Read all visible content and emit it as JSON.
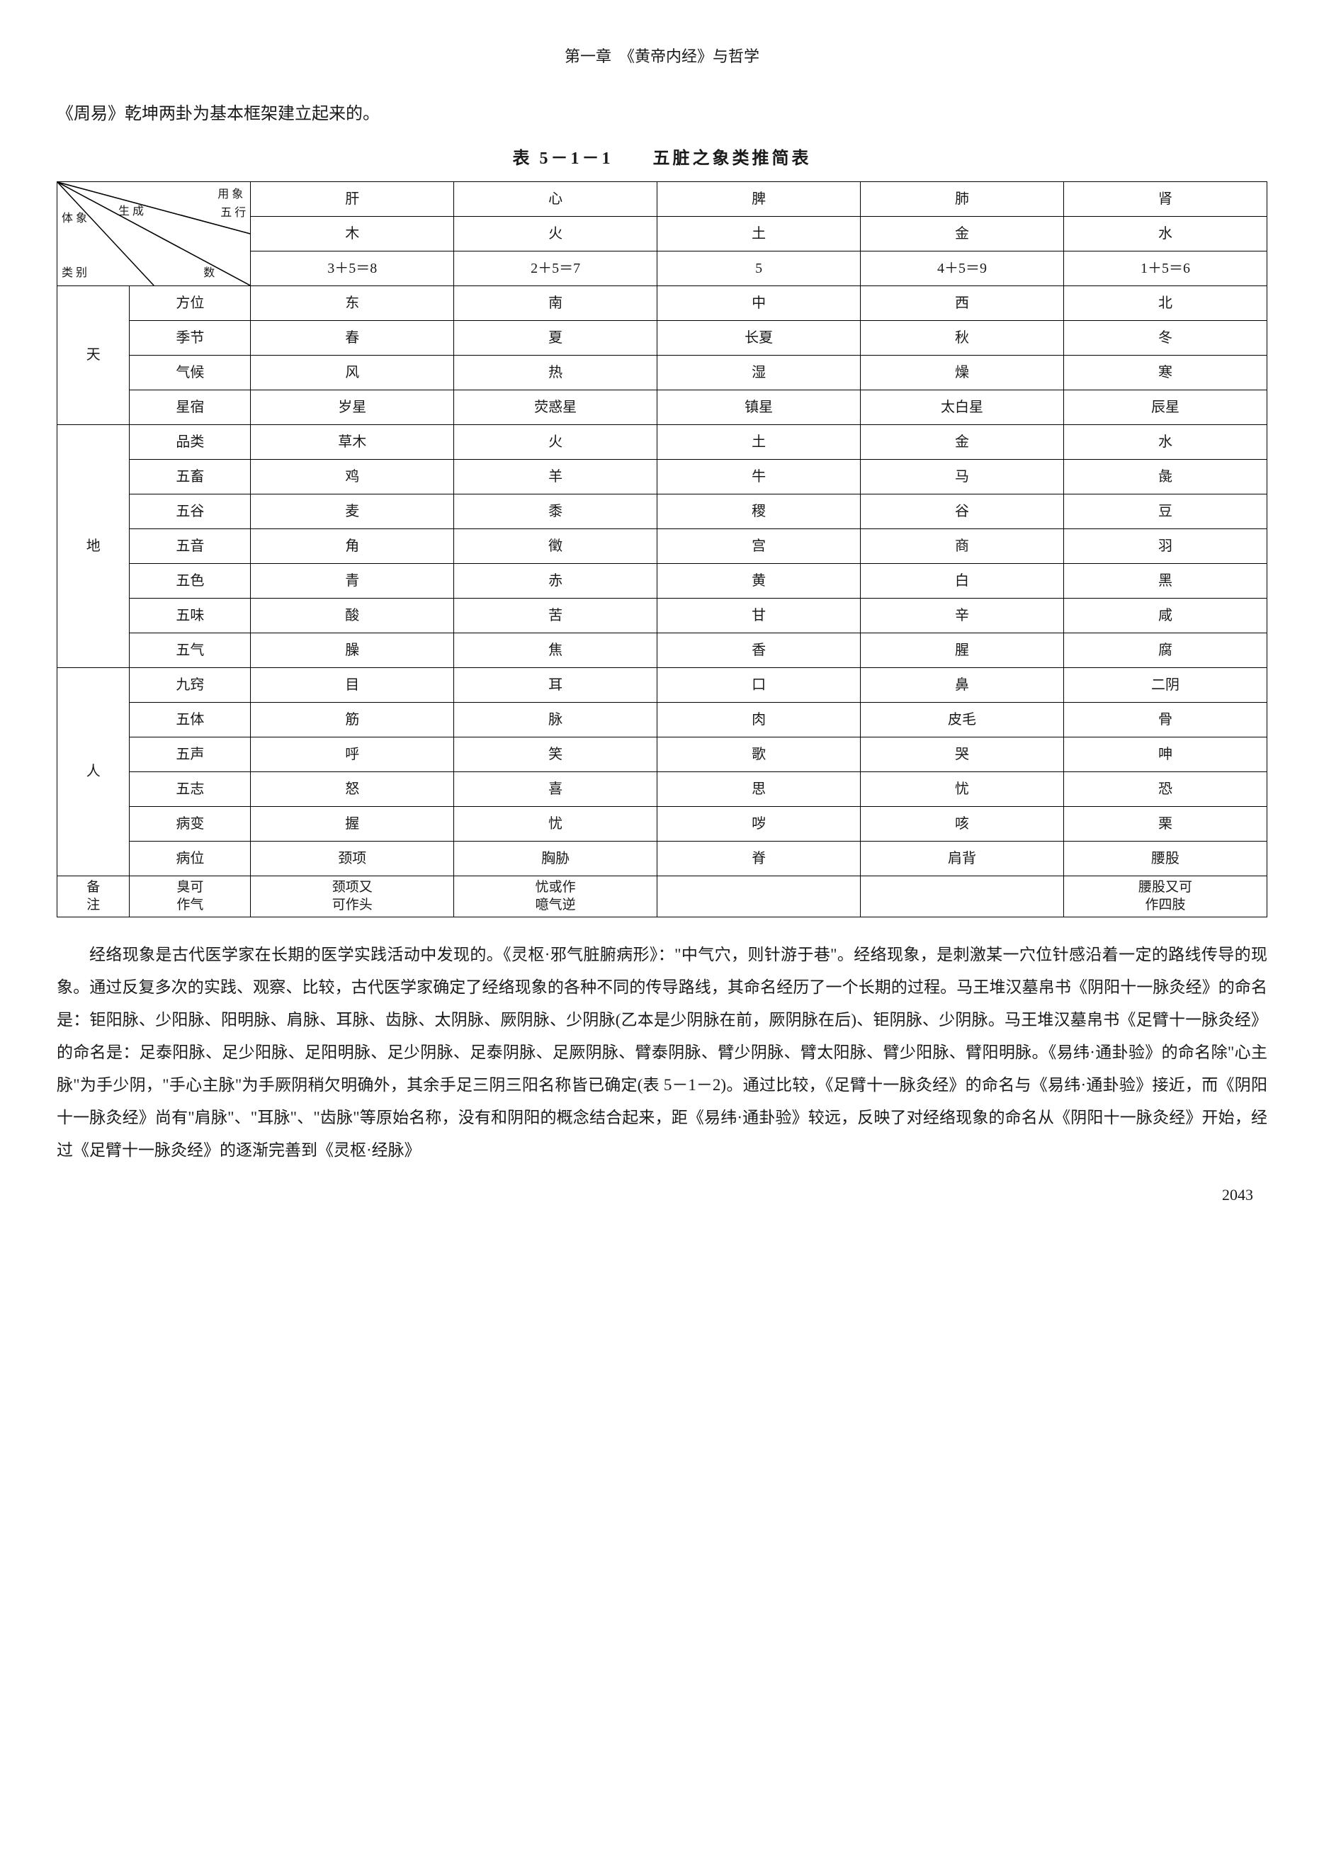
{
  "chapter_header": "第一章　《黄帝内经》与哲学",
  "intro_line": "《周易》乾坤两卦为基本框架建立起来的。",
  "table_title": "表 5－1－1　　五脏之象类推简表",
  "diag_labels": {
    "top_right": "用  象",
    "mid_left": "体  象",
    "mid_center": "生  成",
    "mid_right": "五  行",
    "bottom_left": "类  别",
    "bottom_right": "数"
  },
  "header_organs": [
    "肝",
    "心",
    "脾",
    "肺",
    "肾"
  ],
  "row_elements": [
    "木",
    "火",
    "土",
    "金",
    "水"
  ],
  "row_numbers": [
    "3＋5＝8",
    "2＋5＝7",
    "5",
    "4＋5＝9",
    "1＋5＝6"
  ],
  "groups": [
    {
      "name": "天",
      "rows": [
        {
          "label": "方位",
          "cells": [
            "东",
            "南",
            "中",
            "西",
            "北"
          ]
        },
        {
          "label": "季节",
          "cells": [
            "春",
            "夏",
            "长夏",
            "秋",
            "冬"
          ]
        },
        {
          "label": "气候",
          "cells": [
            "风",
            "热",
            "湿",
            "燥",
            "寒"
          ]
        },
        {
          "label": "星宿",
          "cells": [
            "岁星",
            "荧惑星",
            "镇星",
            "太白星",
            "辰星"
          ]
        }
      ]
    },
    {
      "name": "地",
      "rows": [
        {
          "label": "品类",
          "cells": [
            "草木",
            "火",
            "土",
            "金",
            "水"
          ]
        },
        {
          "label": "五畜",
          "cells": [
            "鸡",
            "羊",
            "牛",
            "马",
            "彘"
          ]
        },
        {
          "label": "五谷",
          "cells": [
            "麦",
            "黍",
            "稷",
            "谷",
            "豆"
          ]
        },
        {
          "label": "五音",
          "cells": [
            "角",
            "徵",
            "宫",
            "商",
            "羽"
          ]
        },
        {
          "label": "五色",
          "cells": [
            "青",
            "赤",
            "黄",
            "白",
            "黑"
          ]
        },
        {
          "label": "五味",
          "cells": [
            "酸",
            "苦",
            "甘",
            "辛",
            "咸"
          ]
        },
        {
          "label": "五气",
          "cells": [
            "臊",
            "焦",
            "香",
            "腥",
            "腐"
          ]
        }
      ]
    },
    {
      "name": "人",
      "rows": [
        {
          "label": "九窍",
          "cells": [
            "目",
            "耳",
            "口",
            "鼻",
            "二阴"
          ]
        },
        {
          "label": "五体",
          "cells": [
            "筋",
            "脉",
            "肉",
            "皮毛",
            "骨"
          ]
        },
        {
          "label": "五声",
          "cells": [
            "呼",
            "笑",
            "歌",
            "哭",
            "呻"
          ]
        },
        {
          "label": "五志",
          "cells": [
            "怒",
            "喜",
            "思",
            "忧",
            "恐"
          ]
        },
        {
          "label": "病变",
          "cells": [
            "握",
            "忧",
            "哕",
            "咳",
            "栗"
          ]
        },
        {
          "label": "病位",
          "cells": [
            "颈项",
            "胸胁",
            "脊",
            "肩背",
            "腰股"
          ]
        }
      ]
    }
  ],
  "notes_row": {
    "label": "备\n注",
    "sub": "臭可\n作气",
    "cells": [
      "颈项又\n可作头",
      "忧或作\n噫气逆",
      "",
      "",
      "腰股又可\n作四肢"
    ]
  },
  "body_para": "经络现象是古代医学家在长期的医学实践活动中发现的。《灵枢·邪气脏腑病形》：\"中气穴，则针游于巷\"。经络现象，是刺激某一穴位针感沿着一定的路线传导的现象。通过反复多次的实践、观察、比较，古代医学家确定了经络现象的各种不同的传导路线，其命名经历了一个长期的过程。马王堆汉墓帛书《阴阳十一脉灸经》的命名是：钜阳脉、少阳脉、阳明脉、肩脉、耳脉、齿脉、太阴脉、厥阴脉、少阴脉(乙本是少阴脉在前，厥阴脉在后)、钜阴脉、少阴脉。马王堆汉墓帛书《足臂十一脉灸经》的命名是：足泰阳脉、足少阳脉、足阳明脉、足少阴脉、足泰阴脉、足厥阴脉、臂泰阴脉、臂少阴脉、臂太阳脉、臂少阳脉、臂阳明脉。《易纬·通卦验》的命名除\"心主脉\"为手少阴，\"手心主脉\"为手厥阴稍欠明确外，其余手足三阴三阳名称皆已确定(表 5－1－2)。通过比较，《足臂十一脉灸经》的命名与《易纬·通卦验》接近，而《阴阳十一脉灸经》尚有\"肩脉\"、\"耳脉\"、\"齿脉\"等原始名称，没有和阴阳的概念结合起来，距《易纬·通卦验》较远，反映了对经络现象的命名从《阴阳十一脉灸经》开始，经过《足臂十一脉灸经》的逐渐完善到《灵枢·经脉》",
  "page_number": "2043"
}
